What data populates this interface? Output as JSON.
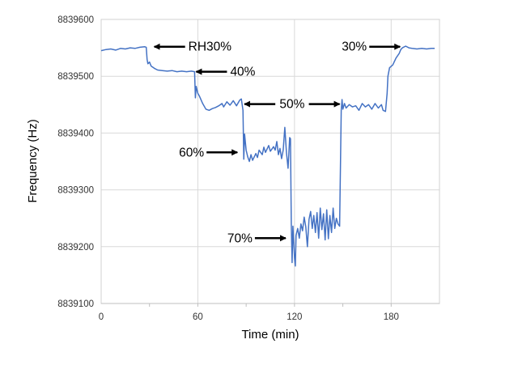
{
  "chart_data": {
    "type": "line",
    "title": "",
    "xlabel": "Time (min)",
    "ylabel": "Frequency (Hz)",
    "xlim": [
      0,
      210
    ],
    "ylim": [
      8839100,
      8839600
    ],
    "xticks": [
      0,
      60,
      120,
      180
    ],
    "xtick_labels": [
      "0",
      "60",
      "120",
      "180"
    ],
    "yticks": [
      8839100,
      8839200,
      8839300,
      8839400,
      8839500,
      8839600
    ],
    "ytick_labels": [
      "8839100",
      "8839200",
      "8839300",
      "8839400",
      "8839500",
      "8839600"
    ],
    "grid": true,
    "legend": "none",
    "line_color": "#4472C4",
    "series": [
      {
        "name": "Frequency",
        "x": [
          0,
          3,
          6,
          9,
          12,
          15,
          18,
          21,
          24,
          27,
          28,
          28.5,
          29,
          30,
          31,
          33,
          35,
          38,
          41,
          44,
          47,
          50,
          53,
          56,
          58,
          58.5,
          59,
          60,
          61,
          63,
          65,
          67,
          69,
          71,
          73,
          75,
          76,
          78,
          80,
          82,
          84,
          86,
          87,
          88,
          88.5,
          89,
          90,
          91,
          92,
          93,
          94,
          96,
          97,
          98,
          100,
          101,
          102,
          104,
          105,
          107,
          108,
          109,
          110,
          111,
          112,
          113,
          114,
          115,
          116,
          117,
          117.5,
          118,
          118.5,
          119,
          120,
          120.5,
          121,
          122,
          123,
          124,
          125,
          126,
          127,
          128,
          129,
          130,
          131,
          132,
          133,
          134,
          135,
          136,
          137,
          138,
          139,
          140,
          141,
          142,
          143,
          144,
          145,
          146,
          147,
          148,
          149,
          149.5,
          150,
          151,
          152,
          154,
          156,
          158,
          160,
          162,
          164,
          166,
          168,
          170,
          172,
          174,
          175,
          176.5,
          177.5,
          178,
          179,
          181,
          183,
          185,
          186,
          187,
          189,
          191,
          193,
          196,
          199,
          202,
          205,
          207
        ],
        "y": [
          8839545,
          8839547,
          8839548,
          8839546,
          8839549,
          8839548,
          8839550,
          8839549,
          8839551,
          8839552,
          8839551,
          8839530,
          8839522,
          8839525,
          8839518,
          8839514,
          8839511,
          8839510,
          8839509,
          8839510,
          8839508,
          8839509,
          8839508,
          8839509,
          8839508,
          8839462,
          8839482,
          8839470,
          8839465,
          8839452,
          8839442,
          8839440,
          8839443,
          8839445,
          8839448,
          8839452,
          8839446,
          8839455,
          8839449,
          8839457,
          8839448,
          8839458,
          8839460,
          8839440,
          8839354,
          8839398,
          8839370,
          8839358,
          8839350,
          8839362,
          8839352,
          8839364,
          8839357,
          8839370,
          8839362,
          8839375,
          8839366,
          8839378,
          8839368,
          8839376,
          8839370,
          8839385,
          8839362,
          8839373,
          8839355,
          8839370,
          8839410,
          8839366,
          8839338,
          8839392,
          8839390,
          8839240,
          8839172,
          8839236,
          8839180,
          8839166,
          8839220,
          8839232,
          8839215,
          8839240,
          8839228,
          8839252,
          8839235,
          8839200,
          8839248,
          8839262,
          8839232,
          8839255,
          8839225,
          8839260,
          8839215,
          8839268,
          8839230,
          8839258,
          8839212,
          8839265,
          8839214,
          8839255,
          8839225,
          8839268,
          8839232,
          8839250,
          8839240,
          8839236,
          8839440,
          8839459,
          8839442,
          8839452,
          8839444,
          8839450,
          8839446,
          8839448,
          8839440,
          8839452,
          8839446,
          8839450,
          8839442,
          8839452,
          8839444,
          8839450,
          8839440,
          8839438,
          8839470,
          8839500,
          8839515,
          8839520,
          8839532,
          8839540,
          8839547,
          8839550,
          8839553,
          8839550,
          8839549,
          8839548,
          8839549,
          8839548,
          8839549,
          8839549
        ]
      }
    ],
    "annotations": [
      {
        "text": "RH30%",
        "side": "right",
        "arrows": [
          {
            "t": 33,
            "f": 8839552,
            "dir": "left"
          }
        ]
      },
      {
        "text": "40%",
        "side": "right",
        "arrows": [
          {
            "t": 59,
            "f": 8839508,
            "dir": "left"
          }
        ]
      },
      {
        "text": "50%",
        "side": "center",
        "arrows": [
          {
            "t": 89,
            "f": 8839451,
            "dir": "left"
          },
          {
            "t": 148,
            "f": 8839451,
            "dir": "right"
          }
        ]
      },
      {
        "text": "60%",
        "side": "left",
        "arrows": [
          {
            "t": 84.5,
            "f": 8839366,
            "dir": "right"
          }
        ]
      },
      {
        "text": "70%",
        "side": "left",
        "arrows": [
          {
            "t": 114.5,
            "f": 8839215,
            "dir": "right"
          }
        ]
      },
      {
        "text": "30%",
        "side": "left",
        "arrows": [
          {
            "t": 185.5,
            "f": 8839552,
            "dir": "right"
          }
        ]
      }
    ]
  }
}
